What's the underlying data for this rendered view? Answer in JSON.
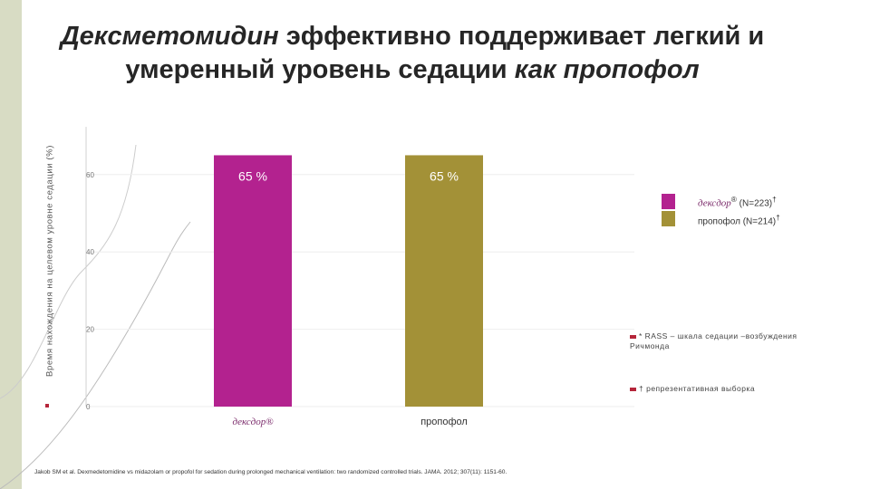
{
  "title": {
    "part1_italic": "Дексметомидин",
    "part2": " эффективно поддерживает легкий и",
    "part3": "умеренный уровень седации ",
    "part4_italic": "как пропофол"
  },
  "chart_data": {
    "type": "bar",
    "title": "",
    "ylabel": "Время нахождения на целевом уровне седации (%)",
    "ylim": [
      0,
      70
    ],
    "yticks": [
      0,
      20,
      40,
      60
    ],
    "categories": [
      "дексдор",
      "пропофол"
    ],
    "values": [
      65,
      65
    ],
    "value_labels": [
      "65 %",
      "65 %"
    ],
    "category_superscripts": [
      "®",
      ""
    ],
    "colors": [
      "#b3228f",
      "#a39137"
    ]
  },
  "legend": [
    {
      "name": "дексдор",
      "sup": "®",
      "suffix": " (N=223)",
      "sup2": "†",
      "color": "#b3228f"
    },
    {
      "name": "пропофол",
      "sup": "",
      "suffix": " (N=214)",
      "sup2": "†",
      "color": "#a39137"
    }
  ],
  "notes": {
    "rass": "* RASS – шкала седации –возбуждения Ричмонда",
    "rep": "† репрезентативная выборка"
  },
  "source": "Jakob SM et al. Dexmedetomidine vs midazolam or propofol for sedation during prolonged mechanical ventilation: two randomized controlled trials. JAMA. 2012; 307(11): 1151-60."
}
